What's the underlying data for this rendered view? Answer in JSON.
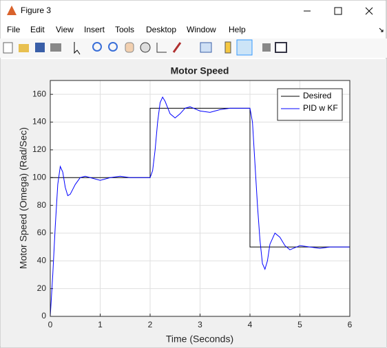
{
  "window": {
    "title": "Figure 3",
    "menu": [
      "File",
      "Edit",
      "View",
      "Insert",
      "Tools",
      "Desktop",
      "Window",
      "Help"
    ]
  },
  "chart_data": {
    "type": "line",
    "title": "Motor Speed",
    "x_label": "Time (Seconds)",
    "y_label": "Motor Speed (Omega) (Rad/Sec)",
    "xlim": [
      0,
      6
    ],
    "ylim": [
      0,
      170
    ],
    "xticks": [
      0,
      1,
      2,
      3,
      4,
      5,
      6
    ],
    "yticks": [
      0,
      20,
      40,
      60,
      80,
      100,
      120,
      140,
      160
    ],
    "grid": true,
    "legend": "upper right",
    "series": [
      {
        "name": "Desired",
        "color": "#000000",
        "x": [
          0,
          0,
          2,
          2,
          4,
          4,
          6
        ],
        "values": [
          0,
          100,
          100,
          150,
          150,
          50,
          50
        ]
      },
      {
        "name": "PID w KF",
        "color": "#0000ff",
        "x": [
          0,
          0.05,
          0.1,
          0.15,
          0.2,
          0.25,
          0.3,
          0.35,
          0.4,
          0.5,
          0.6,
          0.7,
          0.8,
          1.0,
          1.2,
          1.4,
          1.6,
          1.8,
          2.0,
          2.05,
          2.1,
          2.15,
          2.2,
          2.25,
          2.3,
          2.4,
          2.5,
          2.6,
          2.7,
          2.8,
          3.0,
          3.2,
          3.4,
          3.6,
          3.8,
          4.0,
          4.05,
          4.1,
          4.15,
          4.2,
          4.25,
          4.3,
          4.35,
          4.4,
          4.5,
          4.6,
          4.7,
          4.8,
          5.0,
          5.2,
          5.4,
          5.6,
          6.0
        ],
        "values": [
          0,
          30,
          65,
          95,
          108,
          104,
          93,
          87,
          88,
          95,
          100,
          101,
          100,
          98,
          100,
          101,
          100,
          100,
          100,
          105,
          120,
          140,
          154,
          158,
          155,
          146,
          143,
          146,
          150,
          151,
          148,
          147,
          149,
          150,
          150,
          150,
          140,
          110,
          80,
          55,
          38,
          34,
          40,
          52,
          60,
          57,
          51,
          48,
          51,
          50,
          49,
          50,
          50
        ]
      }
    ]
  }
}
